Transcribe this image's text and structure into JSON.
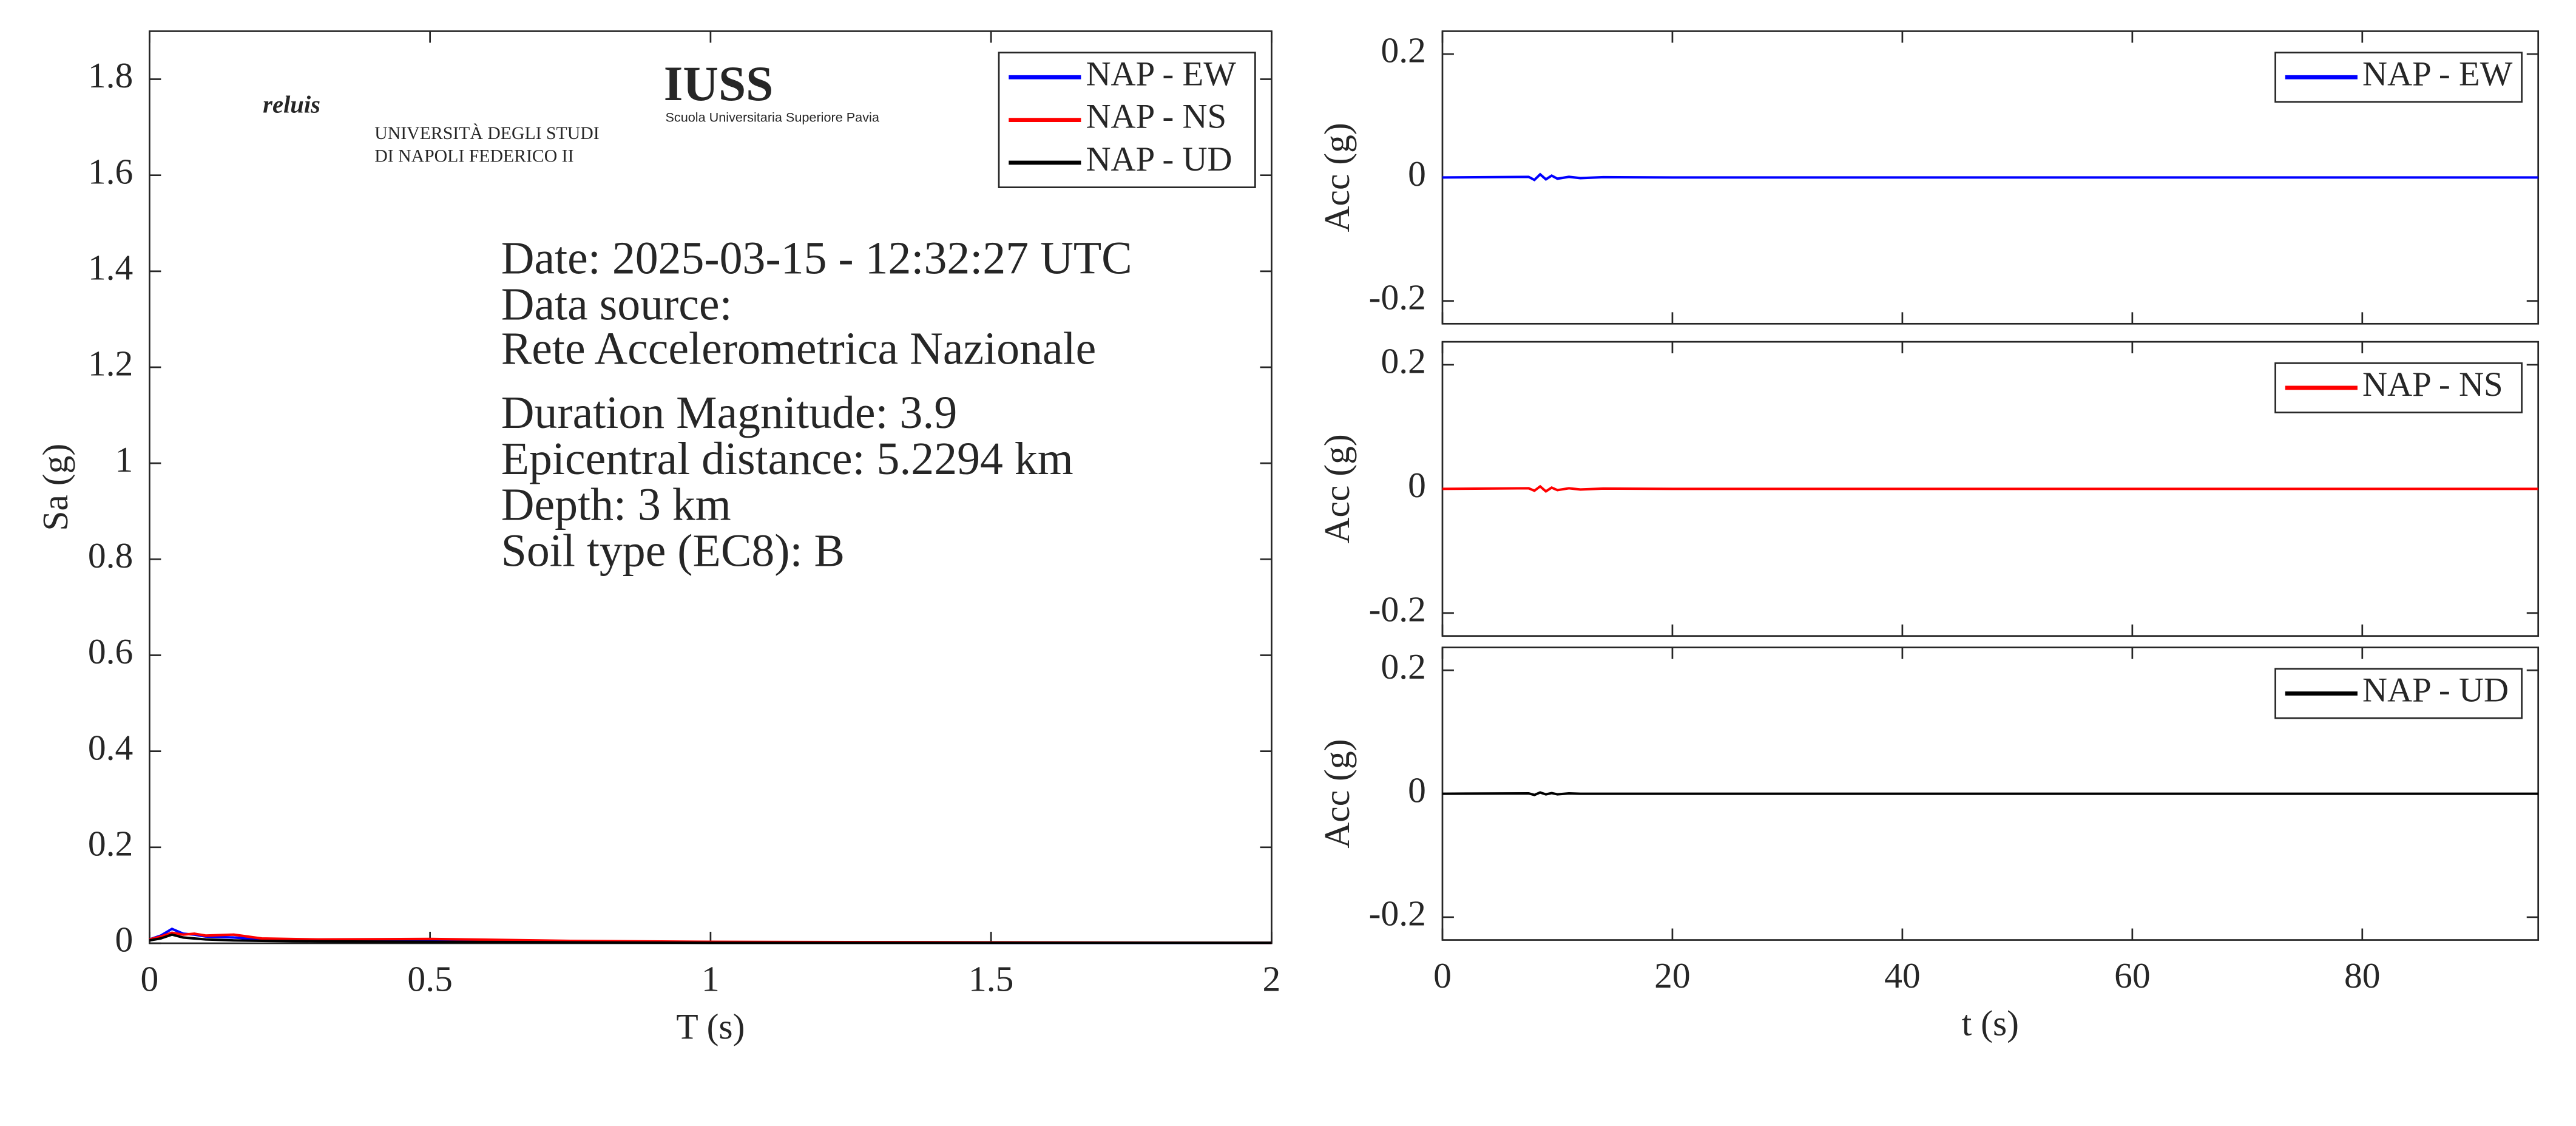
{
  "chart_data": [
    {
      "type": "line",
      "xlabel": "T (s)",
      "ylabel": "Sa (g)",
      "x": [
        0,
        0.02,
        0.04,
        0.06,
        0.08,
        0.1,
        0.15,
        0.2,
        0.3,
        0.5,
        0.75,
        1,
        1.5,
        2
      ],
      "series": [
        {
          "name": "NAP - EW",
          "color": "#0000ff",
          "values": [
            0.008,
            0.016,
            0.03,
            0.02,
            0.018,
            0.014,
            0.012,
            0.008,
            0.006,
            0.005,
            0.003,
            0.002,
            0.001,
            0.001
          ]
        },
        {
          "name": "NAP - NS",
          "color": "#ff0000",
          "values": [
            0.008,
            0.014,
            0.022,
            0.018,
            0.02,
            0.016,
            0.018,
            0.01,
            0.008,
            0.009,
            0.005,
            0.003,
            0.002,
            0.001
          ]
        },
        {
          "name": "NAP - UD",
          "color": "#000000",
          "values": [
            0.006,
            0.01,
            0.018,
            0.012,
            0.01,
            0.008,
            0.006,
            0.005,
            0.004,
            0.003,
            0.002,
            0.001,
            0.001,
            0.001
          ]
        }
      ],
      "xlim": [
        0,
        2
      ],
      "xticks": [
        0,
        0.5,
        1,
        1.5,
        2
      ],
      "ylim": [
        0,
        1.9
      ],
      "yticks": [
        0,
        0.2,
        0.4,
        0.6,
        0.8,
        1,
        1.2,
        1.4,
        1.6,
        1.8
      ],
      "legend": "northeast",
      "annotations": [
        "Date: 2025-03-15 - 12:32:27 UTC",
        "Data source:",
        "Rete Accelerometrica Nazionale",
        "Duration Magnitude: 3.9",
        "Epicentral distance: 5.2294 km",
        "Depth: 3 km",
        "Soil type (EC8): B"
      ],
      "logos": [
        "reluis",
        "UNIVERSITÀ DEGLI STUDI",
        "DI NAPOLI FEDERICO II",
        "IUSS",
        "Scuola Universitaria Superiore Pavia"
      ]
    },
    {
      "type": "line",
      "ylabel": "Acc (g)",
      "x": [
        0,
        7.5,
        8,
        8.5,
        9,
        9.5,
        10,
        11,
        12,
        14,
        20,
        95.3
      ],
      "series": [
        {
          "name": "NAP - EW",
          "color": "#0000ff",
          "values": [
            0,
            0.001,
            -0.004,
            0.005,
            -0.003,
            0.003,
            -0.002,
            0.001,
            -0.001,
            0.0005,
            0,
            0
          ]
        }
      ],
      "xlim": [
        0,
        95.3
      ],
      "xticks": [
        0,
        20,
        40,
        60,
        80
      ],
      "xticklabels": false,
      "ylim": [
        -0.237,
        0.237
      ],
      "yticks": [
        -0.2,
        0,
        0.2
      ],
      "legend": "northeast"
    },
    {
      "type": "line",
      "ylabel": "Acc (g)",
      "x": [
        0,
        7.5,
        8,
        8.5,
        9,
        9.5,
        10,
        11,
        12,
        14,
        20,
        95.3
      ],
      "series": [
        {
          "name": "NAP - NS",
          "color": "#ff0000",
          "values": [
            0,
            0.001,
            -0.003,
            0.004,
            -0.004,
            0.002,
            -0.002,
            0.001,
            -0.001,
            0.0005,
            0,
            0
          ]
        }
      ],
      "xlim": [
        0,
        95.3
      ],
      "xticks": [
        0,
        20,
        40,
        60,
        80
      ],
      "xticklabels": false,
      "ylim": [
        -0.237,
        0.237
      ],
      "yticks": [
        -0.2,
        0,
        0.2
      ],
      "legend": "northeast"
    },
    {
      "type": "line",
      "xlabel": "t (s)",
      "ylabel": "Acc (g)",
      "x": [
        0,
        7.5,
        8,
        8.5,
        9,
        9.5,
        10,
        11,
        12,
        14,
        20,
        95.3
      ],
      "series": [
        {
          "name": "NAP - UD",
          "color": "#000000",
          "values": [
            0,
            0.0005,
            -0.002,
            0.002,
            -0.001,
            0.001,
            -0.001,
            0.0005,
            0,
            0,
            0,
            0
          ]
        }
      ],
      "xlim": [
        0,
        95.3
      ],
      "xticks": [
        0,
        20,
        40,
        60,
        80
      ],
      "ylim": [
        -0.237,
        0.237
      ],
      "yticks": [
        -0.2,
        0,
        0.2
      ],
      "legend": "northeast"
    }
  ]
}
